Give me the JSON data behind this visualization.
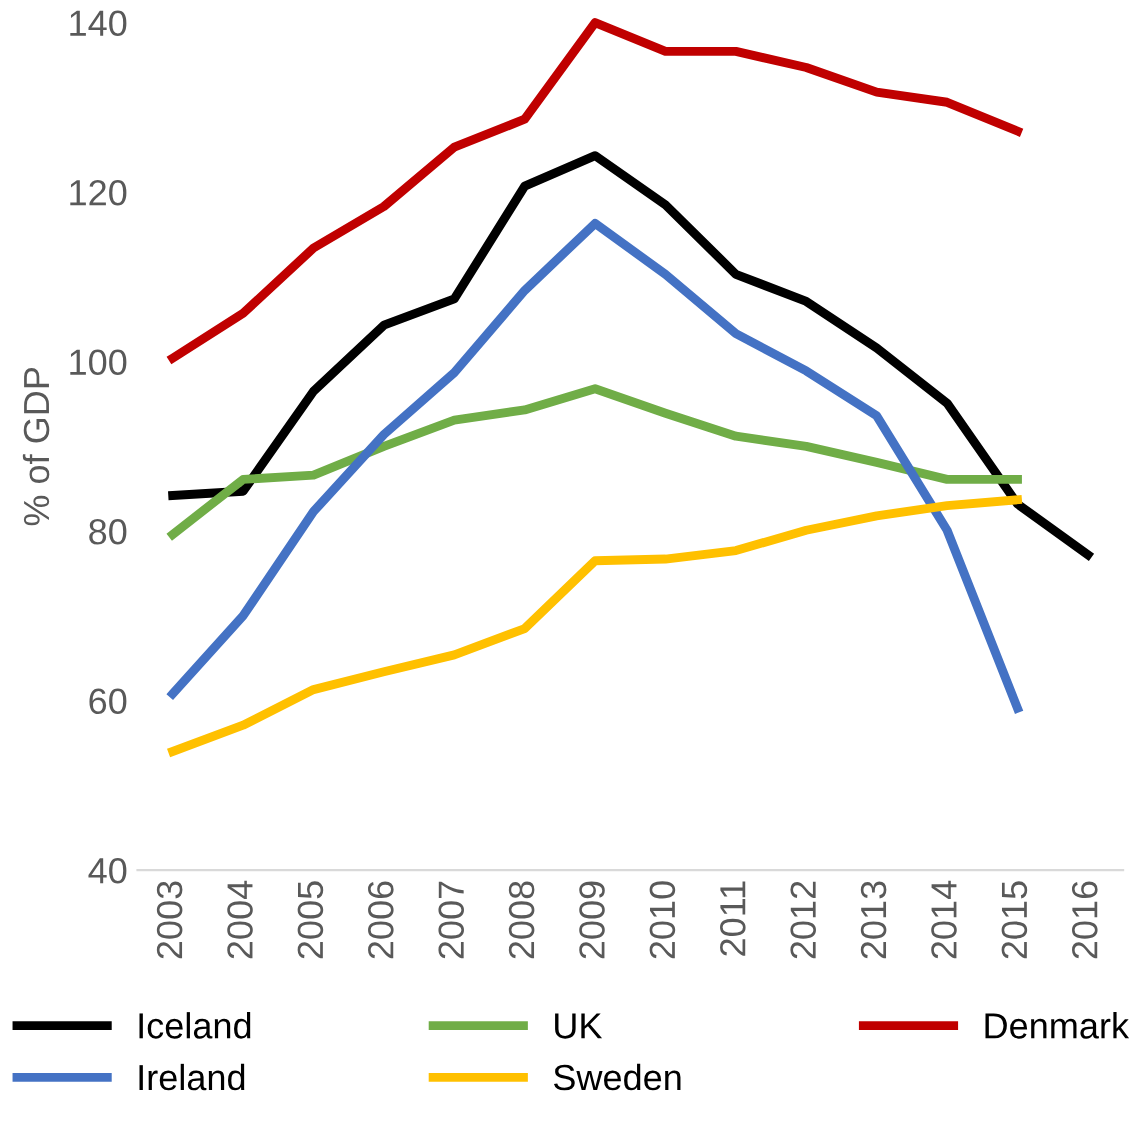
{
  "chart_data": {
    "type": "line",
    "ylabel": "% of GDP",
    "categories": [
      "2003",
      "2004",
      "2005",
      "2006",
      "2007",
      "2008",
      "2009",
      "2010",
      "2011",
      "2012",
      "2013",
      "2014",
      "2015",
      "2016"
    ],
    "ylim": [
      40,
      140
    ],
    "yticks": [
      40,
      60,
      80,
      100,
      120,
      140
    ],
    "grid": false,
    "legend": "bottom",
    "marker": "none",
    "line_style": "solid",
    "series": [
      {
        "name": "Iceland",
        "color": "#000000",
        "values": [
          84.2,
          84.7,
          96.5,
          104.3,
          107.4,
          120.7,
          124.3,
          118.5,
          110.3,
          107.1,
          101.6,
          95.1,
          83.2,
          77.2
        ]
      },
      {
        "name": "UK",
        "color": "#70ad47",
        "values": [
          79.6,
          86.1,
          86.6,
          90,
          93.1,
          94.3,
          96.8,
          93.9,
          91.2,
          90,
          88.1,
          86.1,
          86.1,
          null
        ]
      },
      {
        "name": "Denmark",
        "color": "#c00000",
        "values": [
          100.4,
          105.7,
          113.4,
          118.3,
          125.3,
          128.6,
          140,
          136.6,
          136.6,
          134.7,
          131.8,
          130.6,
          127.2,
          null
        ]
      },
      {
        "name": "Ireland",
        "color": "#4472c4",
        "values": [
          60.8,
          70,
          82.3,
          91.4,
          98.7,
          108.4,
          116.3,
          110.3,
          103.3,
          98.9,
          93.6,
          80.1,
          59.1,
          null
        ]
      },
      {
        "name": "Sweden",
        "color": "#ffc000",
        "values": [
          54,
          57.1,
          61.3,
          63.4,
          65.4,
          68.5,
          76.5,
          76.7,
          77.7,
          80.1,
          81.8,
          83,
          83.7,
          null
        ]
      }
    ]
  }
}
